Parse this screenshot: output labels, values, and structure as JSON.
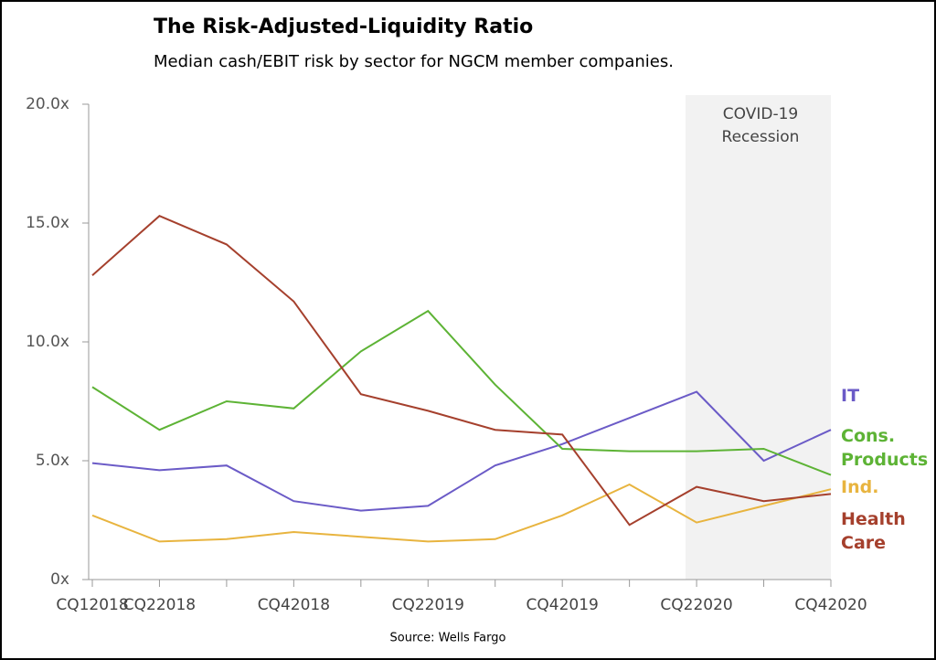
{
  "chart_data": {
    "type": "line",
    "title": "The Risk-Adjusted-Liquidity Ratio",
    "subtitle": "Median cash/EBIT risk by sector for NGCM member companies.",
    "source": "Source: Wells Fargo",
    "annotation": [
      "COVID-19",
      "Recession"
    ],
    "categories": [
      "CQ12018",
      "CQ22018",
      null,
      "CQ42018",
      null,
      "CQ22019",
      null,
      "CQ42019",
      null,
      "CQ22020",
      null,
      "CQ42020"
    ],
    "ylim": [
      0,
      20
    ],
    "yticks": [
      {
        "value": 0,
        "label": "0x"
      },
      {
        "value": 5,
        "label": "5.0x"
      },
      {
        "value": 10,
        "label": "10.0x"
      },
      {
        "value": 15,
        "label": "15.0x"
      },
      {
        "value": 20,
        "label": "20.0x"
      }
    ],
    "series": [
      {
        "name": "IT",
        "color": "#6b5bc7",
        "values": [
          4.9,
          4.6,
          4.8,
          3.3,
          2.9,
          3.1,
          4.8,
          5.7,
          6.8,
          7.9,
          5.0,
          6.3
        ]
      },
      {
        "name": "Cons. Products",
        "color": "#5db335",
        "values": [
          8.1,
          6.3,
          7.5,
          7.2,
          9.6,
          11.3,
          8.2,
          5.5,
          5.4,
          5.4,
          5.5,
          4.4
        ]
      },
      {
        "name": "Ind.",
        "color": "#e8b43f",
        "values": [
          2.7,
          1.6,
          1.7,
          2.0,
          1.8,
          1.6,
          1.7,
          2.7,
          4.0,
          2.4,
          3.1,
          3.8
        ]
      },
      {
        "name": "Health Care",
        "color": "#a5402d",
        "values": [
          12.8,
          15.3,
          14.1,
          11.7,
          7.8,
          7.1,
          6.3,
          6.1,
          2.3,
          3.9,
          3.3,
          3.6
        ]
      }
    ]
  }
}
